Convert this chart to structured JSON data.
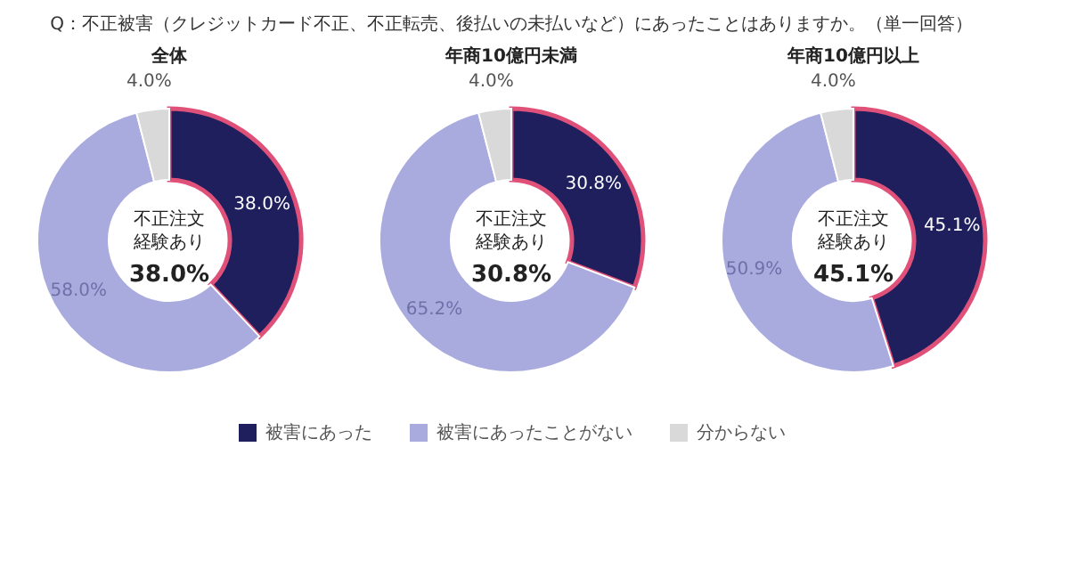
{
  "chart_data": [
    {
      "type": "donut",
      "title": "全体",
      "categories": [
        "被害にあった",
        "被害にあったことがない",
        "分からない"
      ],
      "values": [
        38.0,
        58.0,
        4.0
      ],
      "colors": [
        "#1f1f5e",
        "#a9abdf",
        "#d9d9d9"
      ],
      "value_labels": [
        "38.0%",
        "58.0%",
        "4.0%"
      ],
      "legend": "bottom",
      "annotations": [
        "Q：不正被害（クレジットカード不正、不正転売、後払いの未払いなど）にあったことはありますか。（単一回答）",
        "不正注文",
        "経験あり",
        "38.0%"
      ]
    },
    {
      "type": "donut",
      "title": "年商10億円未満",
      "categories": [
        null,
        null,
        null
      ],
      "values": [
        30.8,
        65.2,
        4.0
      ],
      "colors": [
        "#1f1f5e",
        "#a9abdf",
        "#d9d9d9"
      ],
      "value_labels": [
        "30.8%",
        "65.2%",
        "4.0%"
      ],
      "annotations": [
        "不正注文",
        "経験あり",
        "30.8%"
      ]
    },
    {
      "type": "donut",
      "title": "年商10億円以上",
      "categories": [
        null,
        null,
        null
      ],
      "values": [
        45.1,
        50.9,
        4.0
      ],
      "colors": [
        "#1f1f5e",
        "#a9abdf",
        "#d9d9d9"
      ],
      "value_labels": [
        "45.1%",
        "50.9%",
        "4.0%"
      ],
      "annotations": [
        "不正注文",
        "経験あり",
        "45.1%"
      ]
    }
  ]
}
